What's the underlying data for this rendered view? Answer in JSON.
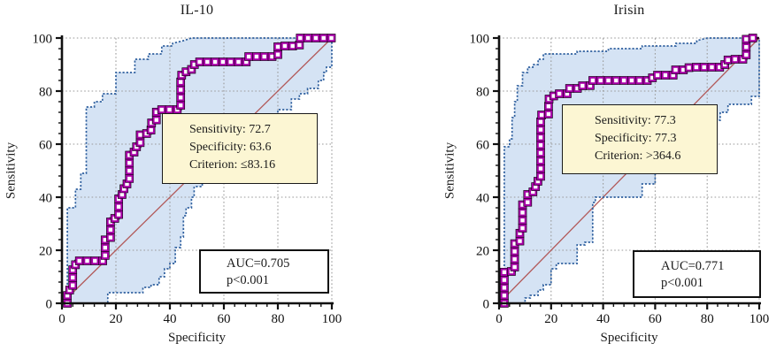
{
  "colors": {
    "roc_line": "#2b002b",
    "roc_marker": "#a800a8",
    "marker_fill": "#ffffff",
    "ci_line": "#2e5f9e",
    "ci_fill": "#d5e3f4",
    "diagonal": "#b25a5a",
    "grid": "#9a9a9a",
    "axis": "#111111",
    "info_box_bg": "#fcf6d3",
    "box_border": "#111111"
  },
  "chart_data": [
    {
      "type": "line",
      "title": "IL-10",
      "xlabel": "Specificity",
      "ylabel": "Sensitivity",
      "xlim": [
        0,
        100
      ],
      "ylim": [
        0,
        100
      ],
      "xticks": [
        0,
        20,
        40,
        60,
        80,
        100
      ],
      "yticks": [
        0,
        20,
        40,
        60,
        80,
        100
      ],
      "minor_tick_step": 4,
      "grid": true,
      "legend": "none",
      "series": [
        {
          "name": "ROC curve",
          "role": "roc",
          "marker": "square",
          "points": [
            [
              2,
              0
            ],
            [
              2,
              5
            ],
            [
              4,
              5
            ],
            [
              4,
              14
            ],
            [
              5,
              14
            ],
            [
              5,
              16
            ],
            [
              16,
              16
            ],
            [
              16,
              24
            ],
            [
              18,
              24
            ],
            [
              18,
              32
            ],
            [
              21,
              32
            ],
            [
              21,
              41
            ],
            [
              23,
              41
            ],
            [
              23,
              45
            ],
            [
              25,
              45
            ],
            [
              25,
              57
            ],
            [
              27,
              57
            ],
            [
              27,
              59
            ],
            [
              29,
              59
            ],
            [
              29,
              64
            ],
            [
              33,
              64
            ],
            [
              33,
              68
            ],
            [
              35,
              68
            ],
            [
              35,
              73
            ],
            [
              44,
              73
            ],
            [
              44,
              86
            ],
            [
              46,
              86
            ],
            [
              46,
              88
            ],
            [
              48,
              88
            ],
            [
              48,
              90
            ],
            [
              51,
              90
            ],
            [
              51,
              91
            ],
            [
              69,
              91
            ],
            [
              69,
              93
            ],
            [
              80,
              93
            ],
            [
              80,
              97
            ],
            [
              88,
              97
            ],
            [
              88,
              100
            ],
            [
              100,
              100
            ]
          ]
        },
        {
          "name": "95% CI upper bound",
          "role": "ci_upper",
          "points": [
            [
              2,
              0
            ],
            [
              2,
              36
            ],
            [
              5,
              36
            ],
            [
              5,
              43
            ],
            [
              7,
              43
            ],
            [
              7,
              49
            ],
            [
              9,
              49
            ],
            [
              9,
              74
            ],
            [
              12,
              74
            ],
            [
              12,
              76
            ],
            [
              15,
              76
            ],
            [
              15,
              79
            ],
            [
              20,
              79
            ],
            [
              20,
              87
            ],
            [
              27,
              87
            ],
            [
              27,
              92
            ],
            [
              32,
              92
            ],
            [
              32,
              94
            ],
            [
              37,
              94
            ],
            [
              37,
              97
            ],
            [
              41,
              97
            ],
            [
              41,
              98
            ],
            [
              45,
              99
            ],
            [
              48,
              100
            ],
            [
              100,
              100
            ]
          ]
        },
        {
          "name": "95% CI lower bound",
          "role": "ci_lower",
          "points": [
            [
              2,
              0
            ],
            [
              17,
              0
            ],
            [
              17,
              4
            ],
            [
              30,
              4
            ],
            [
              30,
              6
            ],
            [
              33,
              6
            ],
            [
              33,
              7
            ],
            [
              36,
              7
            ],
            [
              36,
              10
            ],
            [
              38,
              10
            ],
            [
              38,
              13
            ],
            [
              40,
              13
            ],
            [
              40,
              15
            ],
            [
              42,
              15
            ],
            [
              42,
              21
            ],
            [
              44,
              21
            ],
            [
              44,
              25
            ],
            [
              45,
              25
            ],
            [
              45,
              33
            ],
            [
              46,
              33
            ],
            [
              46,
              36
            ],
            [
              48,
              36
            ],
            [
              48,
              40
            ],
            [
              49,
              40
            ],
            [
              49,
              44
            ],
            [
              52,
              44
            ],
            [
              52,
              47
            ],
            [
              56,
              47
            ],
            [
              56,
              51
            ],
            [
              60,
              51
            ],
            [
              60,
              55
            ],
            [
              64,
              55
            ],
            [
              64,
              59
            ],
            [
              68,
              59
            ],
            [
              68,
              63
            ],
            [
              72,
              63
            ],
            [
              72,
              67
            ],
            [
              76,
              67
            ],
            [
              76,
              70
            ],
            [
              80,
              70
            ],
            [
              80,
              73
            ],
            [
              85,
              73
            ],
            [
              85,
              77
            ],
            [
              88,
              77
            ],
            [
              88,
              79
            ],
            [
              91,
              79
            ],
            [
              91,
              81
            ],
            [
              95,
              81
            ],
            [
              95,
              84
            ],
            [
              97,
              84
            ],
            [
              97,
              87
            ],
            [
              98,
              87
            ],
            [
              98,
              89
            ],
            [
              100,
              89
            ],
            [
              100,
              100
            ]
          ]
        },
        {
          "name": "Chance diagonal",
          "role": "diagonal",
          "points": [
            [
              0,
              0
            ],
            [
              100,
              100
            ]
          ]
        }
      ],
      "info_box": {
        "lines": [
          "Sensitivity: 72.7",
          "Specificity: 63.6",
          "Criterion: ≤83.16"
        ]
      },
      "auc_box": {
        "lines": [
          "AUC=0.705",
          "p<0.001"
        ]
      },
      "operating_point": {
        "sensitivity": 72.7,
        "specificity": 63.6,
        "criterion": "≤83.16"
      },
      "auc": 0.705,
      "p_value": "p<0.001"
    },
    {
      "type": "line",
      "title": "Irisin",
      "xlabel": "Specificity",
      "ylabel": "Sensitivity",
      "xlim": [
        0,
        100
      ],
      "ylim": [
        0,
        100
      ],
      "xticks": [
        0,
        20,
        40,
        60,
        80,
        100
      ],
      "yticks": [
        0,
        20,
        40,
        60,
        80,
        100
      ],
      "minor_tick_step": 4,
      "grid": true,
      "legend": "none",
      "series": [
        {
          "name": "ROC curve",
          "role": "roc",
          "marker": "square",
          "points": [
            [
              2,
              0
            ],
            [
              2,
              12
            ],
            [
              6,
              12
            ],
            [
              6,
              23
            ],
            [
              8,
              23
            ],
            [
              8,
              28
            ],
            [
              9,
              28
            ],
            [
              9,
              38
            ],
            [
              11,
              38
            ],
            [
              11,
              42
            ],
            [
              14,
              42
            ],
            [
              14,
              46
            ],
            [
              16,
              46
            ],
            [
              16,
              71
            ],
            [
              19,
              71
            ],
            [
              19,
              77
            ],
            [
              21,
              77
            ],
            [
              21,
              79
            ],
            [
              27,
              79
            ],
            [
              27,
              81
            ],
            [
              32,
              81
            ],
            [
              32,
              82
            ],
            [
              35,
              82
            ],
            [
              35,
              84
            ],
            [
              57,
              84
            ],
            [
              57,
              85
            ],
            [
              60,
              85
            ],
            [
              60,
              86
            ],
            [
              67,
              86
            ],
            [
              67,
              88
            ],
            [
              73,
              88
            ],
            [
              73,
              89
            ],
            [
              85,
              89
            ],
            [
              85,
              90
            ],
            [
              88,
              90
            ],
            [
              88,
              92
            ],
            [
              95,
              92
            ],
            [
              95,
              100
            ],
            [
              100,
              100
            ]
          ]
        },
        {
          "name": "95% CI upper bound",
          "role": "ci_upper",
          "points": [
            [
              2,
              0
            ],
            [
              2,
              59
            ],
            [
              4,
              59
            ],
            [
              4,
              62
            ],
            [
              5,
              62
            ],
            [
              5,
              70
            ],
            [
              6,
              70
            ],
            [
              6,
              76
            ],
            [
              7,
              76
            ],
            [
              7,
              82
            ],
            [
              9,
              82
            ],
            [
              9,
              87
            ],
            [
              11,
              87
            ],
            [
              11,
              89
            ],
            [
              13,
              89
            ],
            [
              13,
              90
            ],
            [
              15,
              90
            ],
            [
              15,
              92
            ],
            [
              17,
              92
            ],
            [
              17,
              94
            ],
            [
              30,
              94
            ],
            [
              30,
              95
            ],
            [
              42,
              95
            ],
            [
              42,
              96
            ],
            [
              55,
              96
            ],
            [
              55,
              97
            ],
            [
              68,
              97
            ],
            [
              68,
              98
            ],
            [
              76,
              98
            ],
            [
              76,
              99
            ],
            [
              80,
              100
            ],
            [
              100,
              100
            ]
          ]
        },
        {
          "name": "95% CI lower bound",
          "role": "ci_lower",
          "points": [
            [
              2,
              0
            ],
            [
              10,
              0
            ],
            [
              10,
              2
            ],
            [
              12,
              2
            ],
            [
              12,
              3
            ],
            [
              15,
              3
            ],
            [
              15,
              5
            ],
            [
              17,
              5
            ],
            [
              17,
              7
            ],
            [
              20,
              7
            ],
            [
              20,
              13
            ],
            [
              22,
              13
            ],
            [
              22,
              15
            ],
            [
              30,
              15
            ],
            [
              30,
              22
            ],
            [
              33,
              22
            ],
            [
              33,
              23
            ],
            [
              36,
              23
            ],
            [
              36,
              38
            ],
            [
              37,
              38
            ],
            [
              37,
              40
            ],
            [
              55,
              40
            ],
            [
              55,
              45
            ],
            [
              60,
              45
            ],
            [
              60,
              50
            ],
            [
              65,
              50
            ],
            [
              65,
              55
            ],
            [
              70,
              55
            ],
            [
              70,
              60
            ],
            [
              75,
              60
            ],
            [
              75,
              65
            ],
            [
              80,
              65
            ],
            [
              80,
              69
            ],
            [
              85,
              69
            ],
            [
              85,
              72
            ],
            [
              88,
              72
            ],
            [
              88,
              75
            ],
            [
              97,
              75
            ],
            [
              97,
              78
            ],
            [
              100,
              78
            ],
            [
              100,
              100
            ]
          ]
        },
        {
          "name": "Chance diagonal",
          "role": "diagonal",
          "points": [
            [
              0,
              0
            ],
            [
              100,
              100
            ]
          ]
        }
      ],
      "info_box": {
        "lines": [
          "Sensitivity: 77.3",
          "Specificity: 77.3",
          "Criterion: >364.6"
        ]
      },
      "auc_box": {
        "lines": [
          "AUC=0.771",
          "p<0.001"
        ]
      },
      "operating_point": {
        "sensitivity": 77.3,
        "specificity": 77.3,
        "criterion": ">364.6"
      },
      "auc": 0.771,
      "p_value": "p<0.001"
    }
  ]
}
